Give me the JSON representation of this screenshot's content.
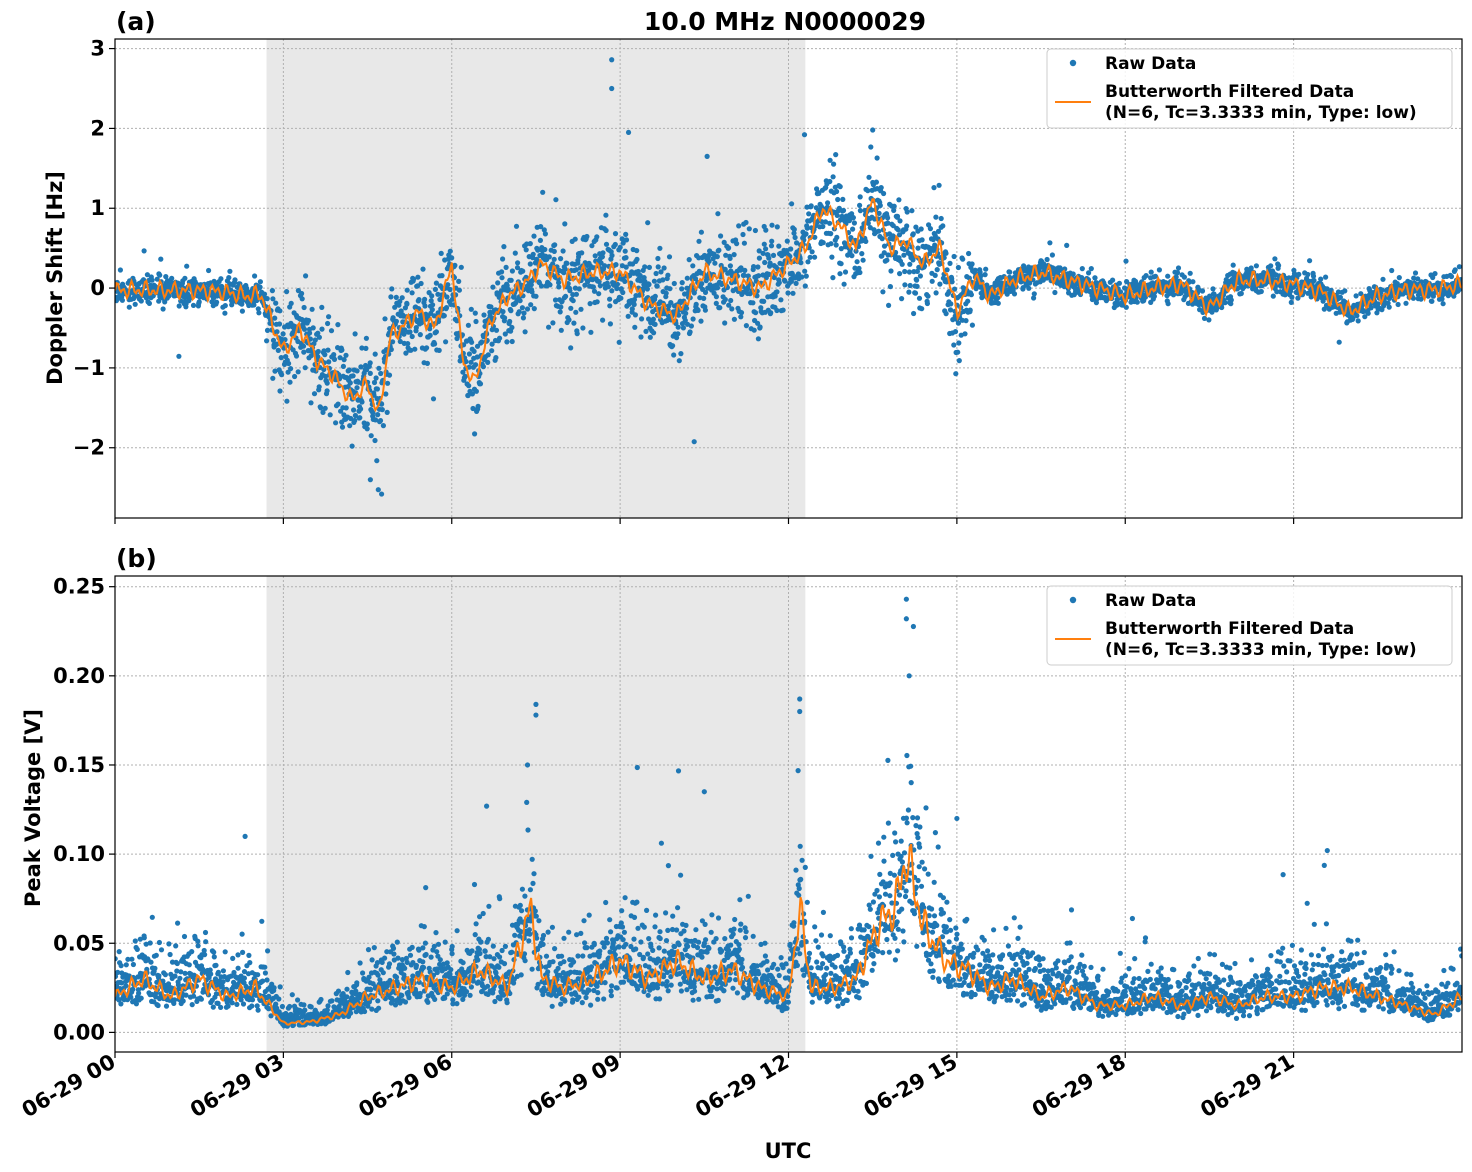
{
  "figure": {
    "title": "10.0 MHz N0000029",
    "xlabel": "UTC",
    "xtick_labels": [
      "06-29 00",
      "06-29 03",
      "06-29 06",
      "06-29 09",
      "06-29 12",
      "06-29 15",
      "06-29 18",
      "06-29 21"
    ]
  },
  "colors": {
    "raw": "#1f77b4",
    "filtered": "#ff7f0e",
    "shade": "#e8e8e8"
  },
  "chart_data": [
    {
      "type": "scatter",
      "panel_label": "(a)",
      "ylabel": "Doppler Shift [Hz]",
      "x_unit": "hours UTC on 06-29",
      "xlim": [
        0,
        24
      ],
      "ylim": [
        -2.88,
        3.12
      ],
      "yticks": [
        -2,
        -1,
        0,
        1,
        2,
        3
      ],
      "ytick_labels": [
        "−2",
        "−1",
        "0",
        "1",
        "2",
        "3"
      ],
      "shaded_interval": [
        2.7,
        12.3
      ],
      "grid": true,
      "legend_position": "top-right",
      "legend": {
        "raw": "Raw Data",
        "filtered_line1": "Butterworth Filtered Data",
        "filtered_line2": "(N=6, Tc=3.3333 min, Type: low)"
      },
      "series": [
        {
          "name": "Butterworth Filtered Data",
          "x": [
            0,
            0.5,
            1,
            1.5,
            2,
            2.3,
            2.6,
            3,
            3.3,
            3.6,
            3.9,
            4.2,
            4.5,
            4.7,
            4.9,
            5.1,
            5.4,
            5.7,
            6,
            6.2,
            6.4,
            6.7,
            7,
            7.3,
            7.6,
            8,
            8.5,
            9,
            9.5,
            10,
            10.5,
            11,
            11.5,
            12,
            12.3,
            12.6,
            12.9,
            13.2,
            13.5,
            13.8,
            14.1,
            14.4,
            14.7,
            15,
            15.3,
            15.6,
            16,
            16.5,
            17,
            17.5,
            18,
            18.5,
            19,
            19.5,
            20,
            20.5,
            21,
            21.5,
            22,
            22.5,
            23,
            23.5,
            24
          ],
          "values": [
            -0.03,
            -0.02,
            -0.03,
            -0.03,
            -0.05,
            -0.1,
            -0.08,
            -0.8,
            -0.5,
            -0.9,
            -1.1,
            -1.4,
            -1.2,
            -1.6,
            -0.6,
            -0.5,
            -0.3,
            -0.5,
            0.3,
            -0.9,
            -1.2,
            -0.4,
            -0.1,
            0.05,
            0.3,
            0.1,
            0.2,
            0.2,
            -0.2,
            -0.35,
            0.2,
            0.1,
            0.0,
            0.3,
            0.5,
            1.0,
            0.8,
            0.5,
            1.1,
            0.5,
            0.6,
            0.3,
            0.5,
            -0.3,
            0.15,
            -0.1,
            0.1,
            0.2,
            0.1,
            0.0,
            -0.1,
            0.0,
            0.05,
            -0.25,
            0.1,
            0.1,
            0.05,
            -0.05,
            -0.3,
            -0.1,
            -0.02,
            -0.02,
            0.05
          ]
        }
      ],
      "raw_data_note": "dense scatter of individual measurements around the filtered curve; spread roughly ±0.15 Hz when quiet, up to ±0.6 Hz during active periods; extremes near 2.85 Hz (~08:50) and -2.6 Hz (~04:45)"
    },
    {
      "type": "scatter",
      "panel_label": "(b)",
      "ylabel": "Peak Voltage [V]",
      "x_unit": "hours UTC on 06-29",
      "xlim": [
        0,
        24
      ],
      "ylim": [
        -0.011,
        0.256
      ],
      "yticks": [
        0.0,
        0.05,
        0.1,
        0.15,
        0.2,
        0.25
      ],
      "ytick_labels": [
        "0.00",
        "0.05",
        "0.10",
        "0.15",
        "0.20",
        "0.25"
      ],
      "shaded_interval": [
        2.7,
        12.3
      ],
      "grid": true,
      "legend_position": "top-right",
      "legend": {
        "raw": "Raw Data",
        "filtered_line1": "Butterworth Filtered Data",
        "filtered_line2": "(N=6, Tc=3.3333 min, Type: low)"
      },
      "series": [
        {
          "name": "Butterworth Filtered Data",
          "x": [
            0,
            0.5,
            1,
            1.5,
            2,
            2.5,
            3,
            3.5,
            4,
            4.5,
            5,
            5.5,
            6,
            6.5,
            7,
            7.4,
            7.6,
            8,
            8.5,
            9,
            9.5,
            10,
            10.5,
            11,
            11.5,
            12,
            12.2,
            12.4,
            12.8,
            13.2,
            13.6,
            13.9,
            14.1,
            14.4,
            14.8,
            15.2,
            15.6,
            16,
            16.5,
            17,
            17.5,
            18,
            18.5,
            19,
            19.5,
            20,
            20.5,
            21,
            21.5,
            22,
            22.5,
            23,
            23.5,
            24
          ],
          "values": [
            0.02,
            0.03,
            0.02,
            0.03,
            0.02,
            0.025,
            0.005,
            0.006,
            0.01,
            0.02,
            0.025,
            0.03,
            0.025,
            0.035,
            0.025,
            0.07,
            0.03,
            0.025,
            0.03,
            0.04,
            0.03,
            0.04,
            0.03,
            0.035,
            0.025,
            0.02,
            0.07,
            0.025,
            0.025,
            0.03,
            0.06,
            0.07,
            0.1,
            0.06,
            0.04,
            0.035,
            0.025,
            0.03,
            0.02,
            0.025,
            0.015,
            0.015,
            0.02,
            0.015,
            0.02,
            0.015,
            0.02,
            0.02,
            0.025,
            0.025,
            0.02,
            0.015,
            0.01,
            0.02
          ]
        }
      ],
      "raw_data_note": "dense scatter of individual measurements above the filtered curve; peaks near 0.243 V (~14:05), 0.185 V (~07:30), 0.187 V (~12:15)"
    }
  ]
}
